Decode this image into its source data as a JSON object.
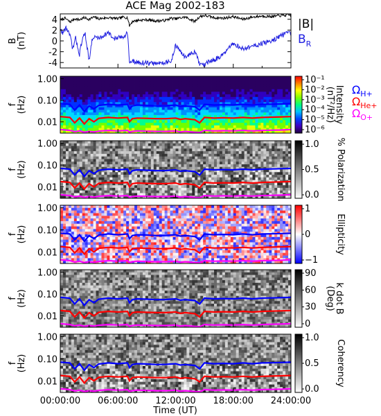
{
  "chart_data": {
    "title": "ACE Mag 2002-183",
    "xlabel": "Time (UT)",
    "x_ticks": [
      "00:00:00",
      "06:00:00",
      "12:00:00",
      "18:00:00",
      "24:00:00"
    ],
    "x_range_hours": [
      0,
      24
    ],
    "colors": {
      "B_total": "#000000",
      "B_R": "#2020e0",
      "omega_H": "#0000ff",
      "omega_He": "#ff0000",
      "omega_O": "#ff00ff"
    },
    "panels": [
      {
        "id": "b-field",
        "type": "line",
        "ylabel": [
          "B",
          "(nT)"
        ],
        "ylim": [
          -5,
          5
        ],
        "yticks": [
          -4,
          -2,
          0,
          2,
          4
        ],
        "legend": [
          {
            "label": "|B|",
            "color": "#000000"
          },
          {
            "label": "B",
            "sub": "R",
            "color": "#2020e0"
          }
        ],
        "series": [
          {
            "name": "|B|",
            "color": "#000000",
            "x": [
              0,
              0.5,
              1,
              1.5,
              2,
              2.5,
              3,
              3.5,
              4,
              4.5,
              5,
              5.5,
              6,
              6.5,
              7,
              7.2,
              7.5,
              8,
              9,
              10,
              11,
              11.5,
              12,
              13,
              14,
              14.5,
              15,
              16,
              17,
              18,
              19,
              20,
              21,
              22,
              23,
              24
            ],
            "y": [
              3.8,
              4.2,
              3.5,
              4.1,
              3.9,
              4.3,
              4.0,
              4.4,
              4.1,
              4.2,
              4.3,
              4.2,
              4.1,
              4.4,
              4.3,
              2.8,
              3.6,
              3.8,
              3.9,
              3.7,
              3.8,
              4.2,
              4.1,
              4.4,
              3.6,
              4.5,
              4.7,
              4.3,
              4.2,
              4.5,
              4.0,
              4.4,
              4.6,
              4.5,
              4.7,
              4.8
            ]
          },
          {
            "name": "B_R",
            "color": "#2020e0",
            "x": [
              0,
              0.3,
              0.6,
              1,
              1.3,
              1.6,
              2,
              2.3,
              2.6,
              3,
              3.3,
              3.6,
              4,
              4.5,
              5,
              5.5,
              6,
              6.5,
              7,
              7.2,
              7.5,
              8,
              9,
              10,
              11,
              11.5,
              12,
              12.5,
              13,
              13.5,
              14,
              14.5,
              15,
              15.5,
              16,
              17,
              18,
              19,
              20,
              21,
              22,
              23,
              24
            ],
            "y": [
              2.0,
              1.5,
              2.5,
              1.0,
              -1.5,
              0.5,
              -2.5,
              0.5,
              1.2,
              -3.5,
              0.0,
              0.8,
              0.5,
              1.0,
              1.5,
              0.5,
              0.5,
              0.8,
              1.5,
              -4.0,
              -3.8,
              -4.0,
              -4.1,
              -4.2,
              -3.9,
              -4.0,
              -0.8,
              -2.0,
              -3.0,
              -2.5,
              -2.0,
              -4.3,
              -4.5,
              -3.8,
              -3.5,
              -2.5,
              -0.5,
              -1.5,
              -1.0,
              -0.5,
              0.0,
              1.0,
              1.5
            ]
          }
        ]
      },
      {
        "id": "intensity",
        "type": "heatmap",
        "ylabel": [
          "f",
          "(Hz)"
        ],
        "yscale": "log",
        "ylim": [
          0.003,
          1.3
        ],
        "yticks": [
          "1.00",
          "0.10",
          "0.01"
        ],
        "colorbar": {
          "label": [
            "Intensity",
            "(nT²/Hz)"
          ],
          "ticks": [
            "10⁻¹",
            "10⁻²",
            "10⁻³",
            "10⁻⁴",
            "10⁻⁵",
            "10⁻⁶"
          ],
          "palette": [
            "#200040",
            "#4000c0",
            "#0040ff",
            "#00c0ff",
            "#00ff80",
            "#80ff00",
            "#ffff00",
            "#ff8000",
            "#ff0000"
          ]
        },
        "legend": [
          {
            "label": "Ω",
            "sub": "H+",
            "color": "#0000ff"
          },
          {
            "label": "Ω",
            "sub": "He+",
            "color": "#ff0000"
          },
          {
            "label": "Ω",
            "sub": "O+",
            "color": "#ff00ff"
          }
        ]
      },
      {
        "id": "polarization",
        "type": "heatmap",
        "ylabel": [
          "f",
          "(Hz)"
        ],
        "yscale": "log",
        "ylim": [
          0.003,
          1.3
        ],
        "yticks": [
          "1.00",
          "0.10",
          "0.01"
        ],
        "colorbar": {
          "label": [
            "% Polarization"
          ],
          "ticks": [
            "1.0",
            "0.5",
            "0.0"
          ],
          "palette": [
            "#ffffff",
            "#000000"
          ]
        }
      },
      {
        "id": "ellipticity",
        "type": "heatmap",
        "ylabel": [
          "f",
          "(Hz)"
        ],
        "yscale": "log",
        "ylim": [
          0.003,
          1.3
        ],
        "yticks": [
          "1.00",
          "0.10",
          "0.01"
        ],
        "colorbar": {
          "label": [
            "Ellipticity"
          ],
          "ticks": [
            "1",
            "0",
            "−1"
          ],
          "palette": [
            "#0000ff",
            "#ffffff",
            "#ff0000"
          ]
        }
      },
      {
        "id": "kdotb",
        "type": "heatmap",
        "ylabel": [
          "f",
          "(Hz)"
        ],
        "yscale": "log",
        "ylim": [
          0.003,
          1.3
        ],
        "yticks": [
          "1.00",
          "0.10",
          "0.01"
        ],
        "colorbar": {
          "label": [
            "k dot B",
            "(Deg)"
          ],
          "ticks": [
            "90",
            "60",
            "30",
            "0"
          ],
          "palette": [
            "#ffffff",
            "#000000"
          ]
        }
      },
      {
        "id": "coherency",
        "type": "heatmap",
        "ylabel": [
          "f",
          "(Hz)"
        ],
        "yscale": "log",
        "ylim": [
          0.003,
          1.3
        ],
        "yticks": [
          "1.00",
          "0.10",
          "0.01"
        ],
        "colorbar": {
          "label": [
            "Coherency"
          ],
          "ticks": [
            "1.0",
            "0.5",
            "0.0"
          ],
          "palette": [
            "#ffffff",
            "#000000"
          ]
        }
      }
    ],
    "gyrofrequency_lines": {
      "x": [
        0,
        1,
        1.5,
        2,
        2.5,
        3,
        3.5,
        4,
        5,
        6,
        7,
        7.2,
        7.5,
        8,
        9,
        10,
        11,
        12,
        12.5,
        13,
        14,
        14.5,
        15,
        16,
        17,
        18,
        19,
        20,
        21,
        22,
        23,
        24
      ],
      "H+": [
        0.07,
        0.065,
        0.035,
        0.06,
        0.03,
        0.055,
        0.04,
        0.058,
        0.065,
        0.06,
        0.065,
        0.04,
        0.055,
        0.06,
        0.058,
        0.055,
        0.056,
        0.06,
        0.052,
        0.055,
        0.05,
        0.035,
        0.065,
        0.06,
        0.062,
        0.06,
        0.065,
        0.06,
        0.065,
        0.066,
        0.068,
        0.07
      ],
      "He+": [
        0.0175,
        0.016,
        0.009,
        0.015,
        0.008,
        0.014,
        0.01,
        0.0145,
        0.016,
        0.015,
        0.016,
        0.01,
        0.014,
        0.015,
        0.0145,
        0.014,
        0.014,
        0.015,
        0.013,
        0.014,
        0.0125,
        0.009,
        0.016,
        0.015,
        0.0155,
        0.015,
        0.016,
        0.015,
        0.016,
        0.0165,
        0.017,
        0.0175
      ],
      "O+": [
        0.0044,
        0.004,
        0.0035,
        0.0038,
        0.0033,
        0.0036,
        0.0034,
        0.0037,
        0.004,
        0.0038,
        0.004,
        0.0033,
        0.0036,
        0.0038,
        0.0037,
        0.0036,
        0.0036,
        0.0038,
        0.0034,
        0.0036,
        0.0033,
        0.0032,
        0.004,
        0.0038,
        0.0039,
        0.0038,
        0.004,
        0.0038,
        0.004,
        0.0041,
        0.0042,
        0.0044
      ]
    }
  }
}
